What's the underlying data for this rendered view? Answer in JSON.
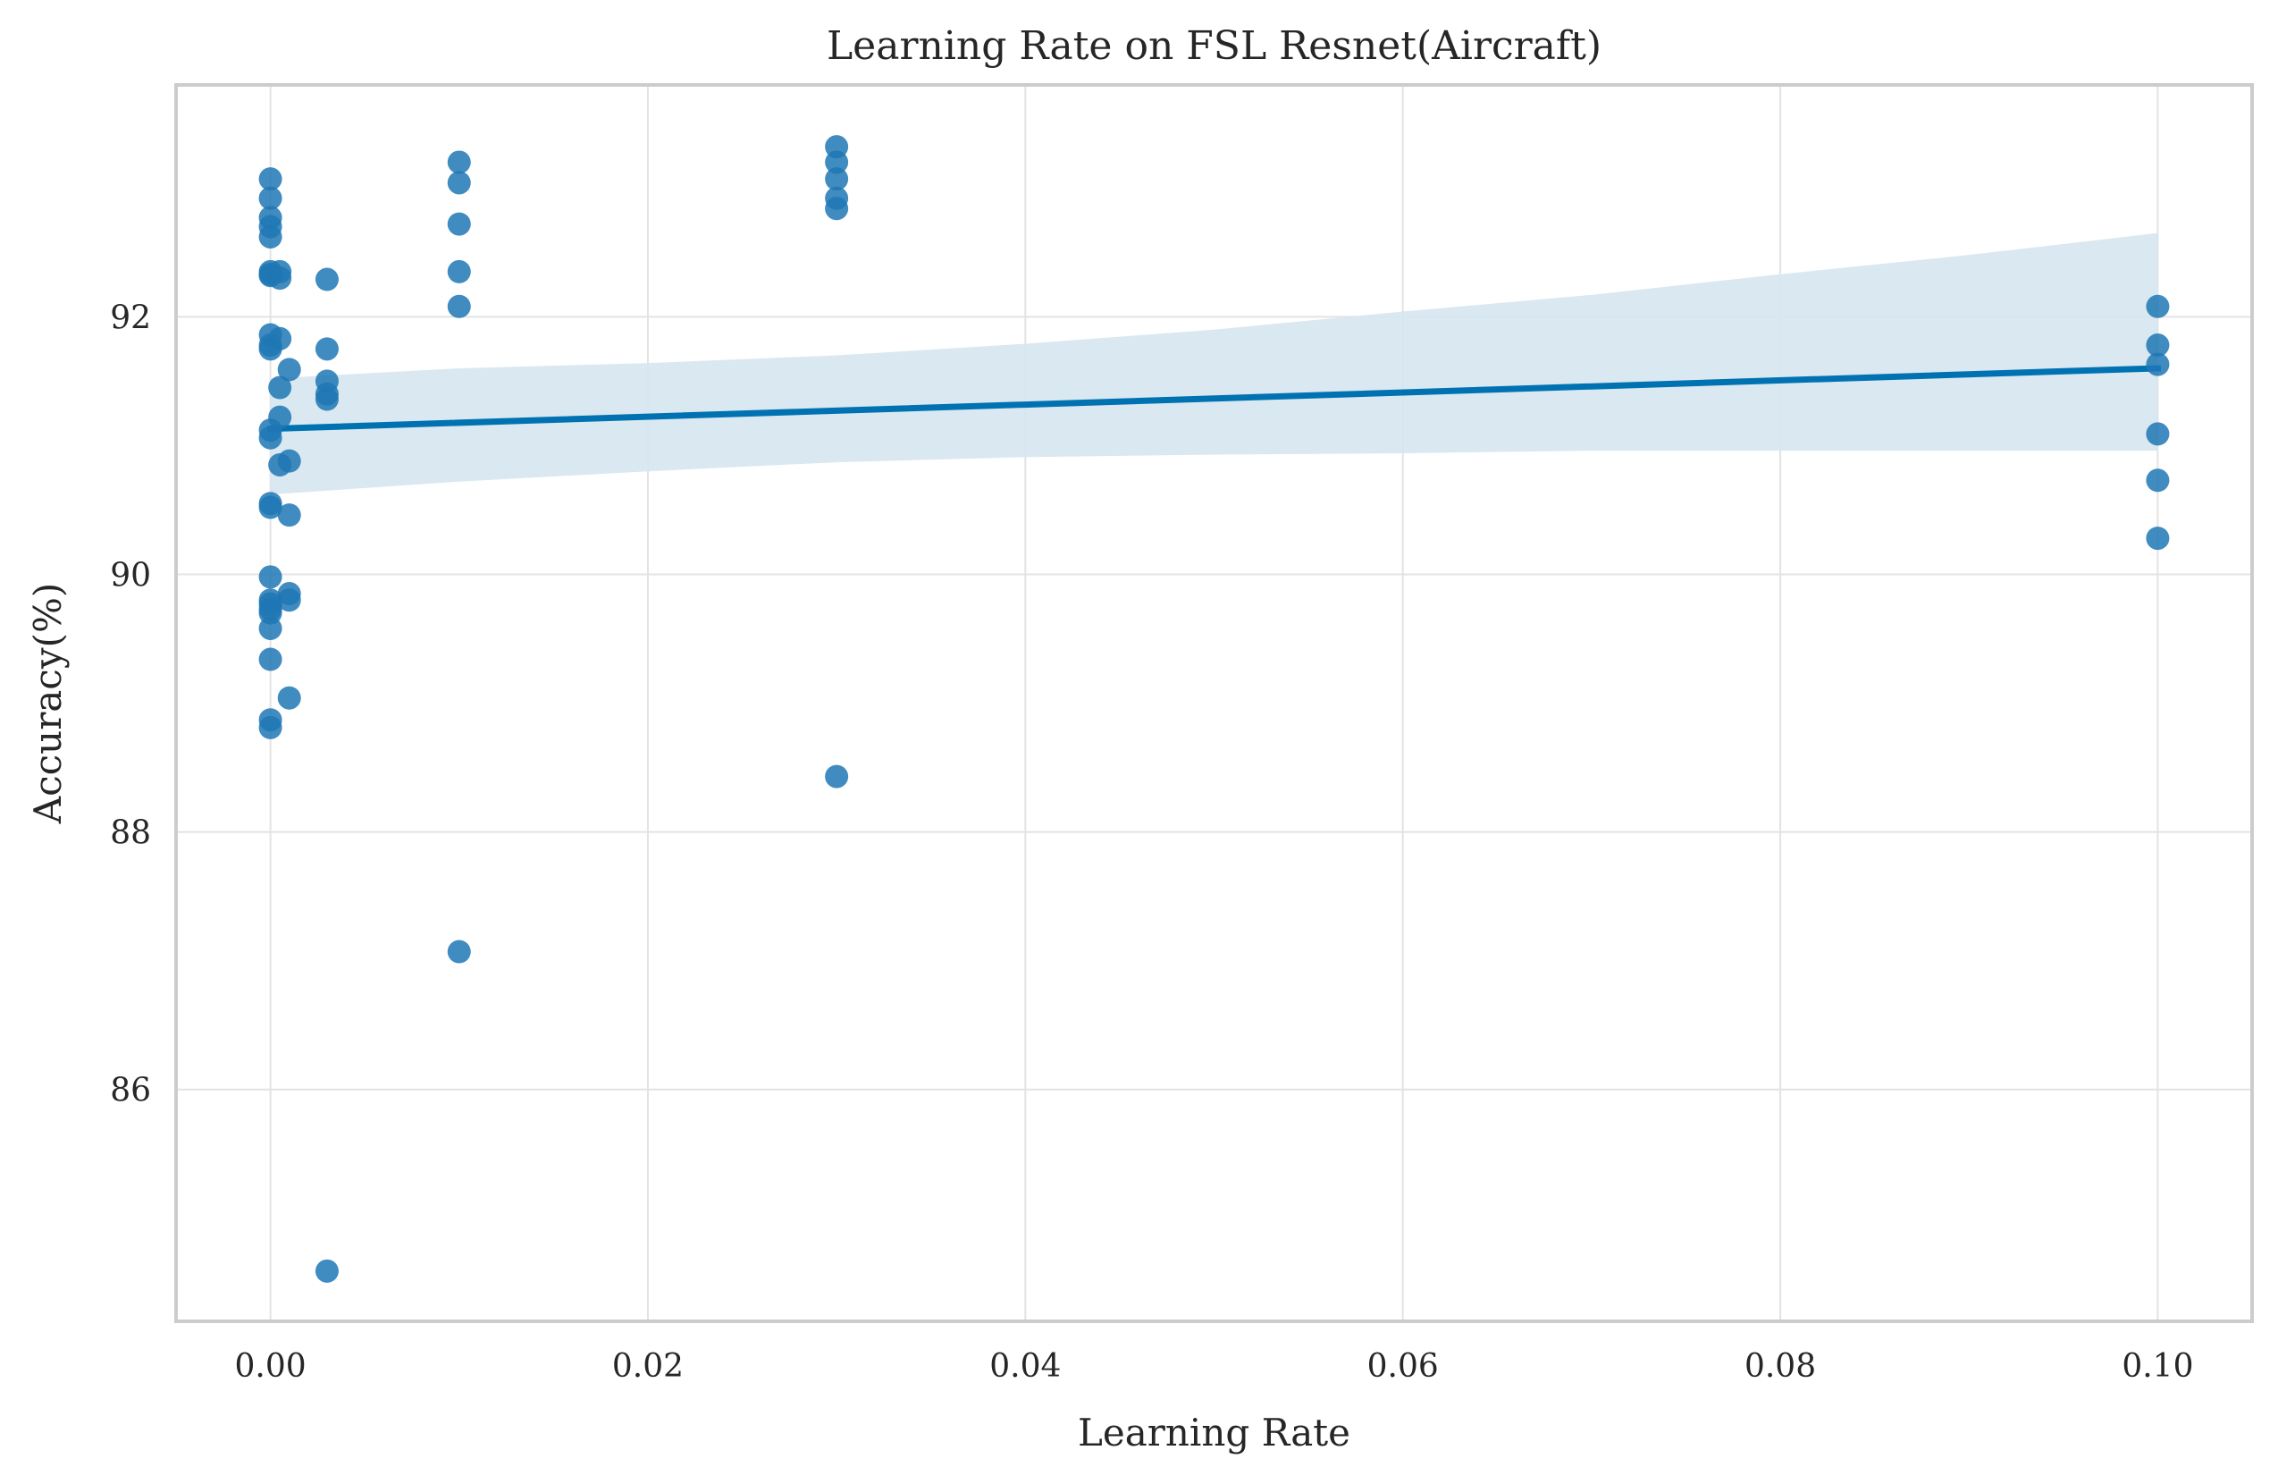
{
  "chart_data": {
    "type": "scatter",
    "title": "Learning Rate on FSL Resnet(Aircraft)",
    "xlabel": "Learning Rate",
    "ylabel": "Accuracy(%)",
    "xlim": [
      -0.005,
      0.105
    ],
    "ylim": [
      84.2,
      93.8
    ],
    "xticks": [
      0.0,
      0.02,
      0.04,
      0.06,
      0.08,
      0.1
    ],
    "xtick_labels": [
      "0.00",
      "0.02",
      "0.04",
      "0.06",
      "0.08",
      "0.10"
    ],
    "yticks": [
      86,
      88,
      90,
      92
    ],
    "ytick_labels": [
      "86",
      "88",
      "90",
      "92"
    ],
    "grid": true,
    "colors": {
      "points": "#1f77b4",
      "line": "#0072b2",
      "band": "#d6e6f0",
      "grid": "#e3e3e3",
      "frame": "#cccccc"
    },
    "series": [
      {
        "points": [
          [
            0.0,
            93.07
          ],
          [
            0.0,
            92.92
          ],
          [
            0.0,
            92.77
          ],
          [
            0.0,
            92.7
          ],
          [
            0.0,
            92.62
          ],
          [
            0.0,
            92.35
          ],
          [
            0.0,
            92.33
          ],
          [
            0.0,
            92.32
          ],
          [
            0.0,
            91.86
          ],
          [
            0.0,
            91.78
          ],
          [
            0.0,
            91.75
          ],
          [
            0.0,
            91.12
          ],
          [
            0.0,
            91.06
          ],
          [
            0.0,
            90.55
          ],
          [
            0.0,
            90.52
          ],
          [
            0.0,
            89.98
          ],
          [
            0.0,
            89.8
          ],
          [
            0.0,
            89.77
          ],
          [
            0.0,
            89.73
          ],
          [
            0.0,
            89.7
          ],
          [
            0.0,
            89.58
          ],
          [
            0.0,
            89.34
          ],
          [
            0.0,
            88.87
          ],
          [
            0.0,
            88.81
          ],
          [
            0.0005,
            92.35
          ],
          [
            0.0005,
            92.3
          ],
          [
            0.0005,
            91.83
          ],
          [
            0.0005,
            91.45
          ],
          [
            0.0005,
            91.22
          ],
          [
            0.0005,
            90.85
          ],
          [
            0.001,
            91.59
          ],
          [
            0.001,
            90.88
          ],
          [
            0.001,
            90.46
          ],
          [
            0.001,
            89.85
          ],
          [
            0.001,
            89.8
          ],
          [
            0.001,
            89.04
          ],
          [
            0.003,
            92.29
          ],
          [
            0.003,
            91.75
          ],
          [
            0.003,
            91.5
          ],
          [
            0.003,
            91.4
          ],
          [
            0.003,
            91.36
          ],
          [
            0.003,
            84.59
          ],
          [
            0.01,
            93.2
          ],
          [
            0.01,
            93.04
          ],
          [
            0.01,
            92.72
          ],
          [
            0.01,
            92.35
          ],
          [
            0.01,
            92.08
          ],
          [
            0.01,
            87.07
          ],
          [
            0.03,
            93.32
          ],
          [
            0.03,
            93.2
          ],
          [
            0.03,
            93.07
          ],
          [
            0.03,
            92.92
          ],
          [
            0.03,
            92.84
          ],
          [
            0.03,
            88.43
          ],
          [
            0.1,
            92.08
          ],
          [
            0.1,
            91.78
          ],
          [
            0.1,
            91.63
          ],
          [
            0.1,
            91.09
          ],
          [
            0.1,
            90.73
          ],
          [
            0.1,
            90.28
          ]
        ]
      }
    ],
    "regression": {
      "x": [
        0.0,
        0.1
      ],
      "y": [
        91.13,
        91.6
      ],
      "ci_upper": [
        [
          0.0,
          91.52
        ],
        [
          0.01,
          91.6
        ],
        [
          0.02,
          91.64
        ],
        [
          0.03,
          91.7
        ],
        [
          0.04,
          91.79
        ],
        [
          0.05,
          91.9
        ],
        [
          0.06,
          92.04
        ],
        [
          0.07,
          92.17
        ],
        [
          0.08,
          92.33
        ],
        [
          0.09,
          92.48
        ],
        [
          0.1,
          92.65
        ]
      ],
      "ci_lower": [
        [
          0.0,
          90.62
        ],
        [
          0.01,
          90.72
        ],
        [
          0.02,
          90.8
        ],
        [
          0.03,
          90.87
        ],
        [
          0.04,
          90.91
        ],
        [
          0.05,
          90.93
        ],
        [
          0.06,
          90.94
        ],
        [
          0.07,
          90.96
        ],
        [
          0.08,
          90.96
        ],
        [
          0.09,
          90.96
        ],
        [
          0.1,
          90.96
        ]
      ]
    }
  }
}
